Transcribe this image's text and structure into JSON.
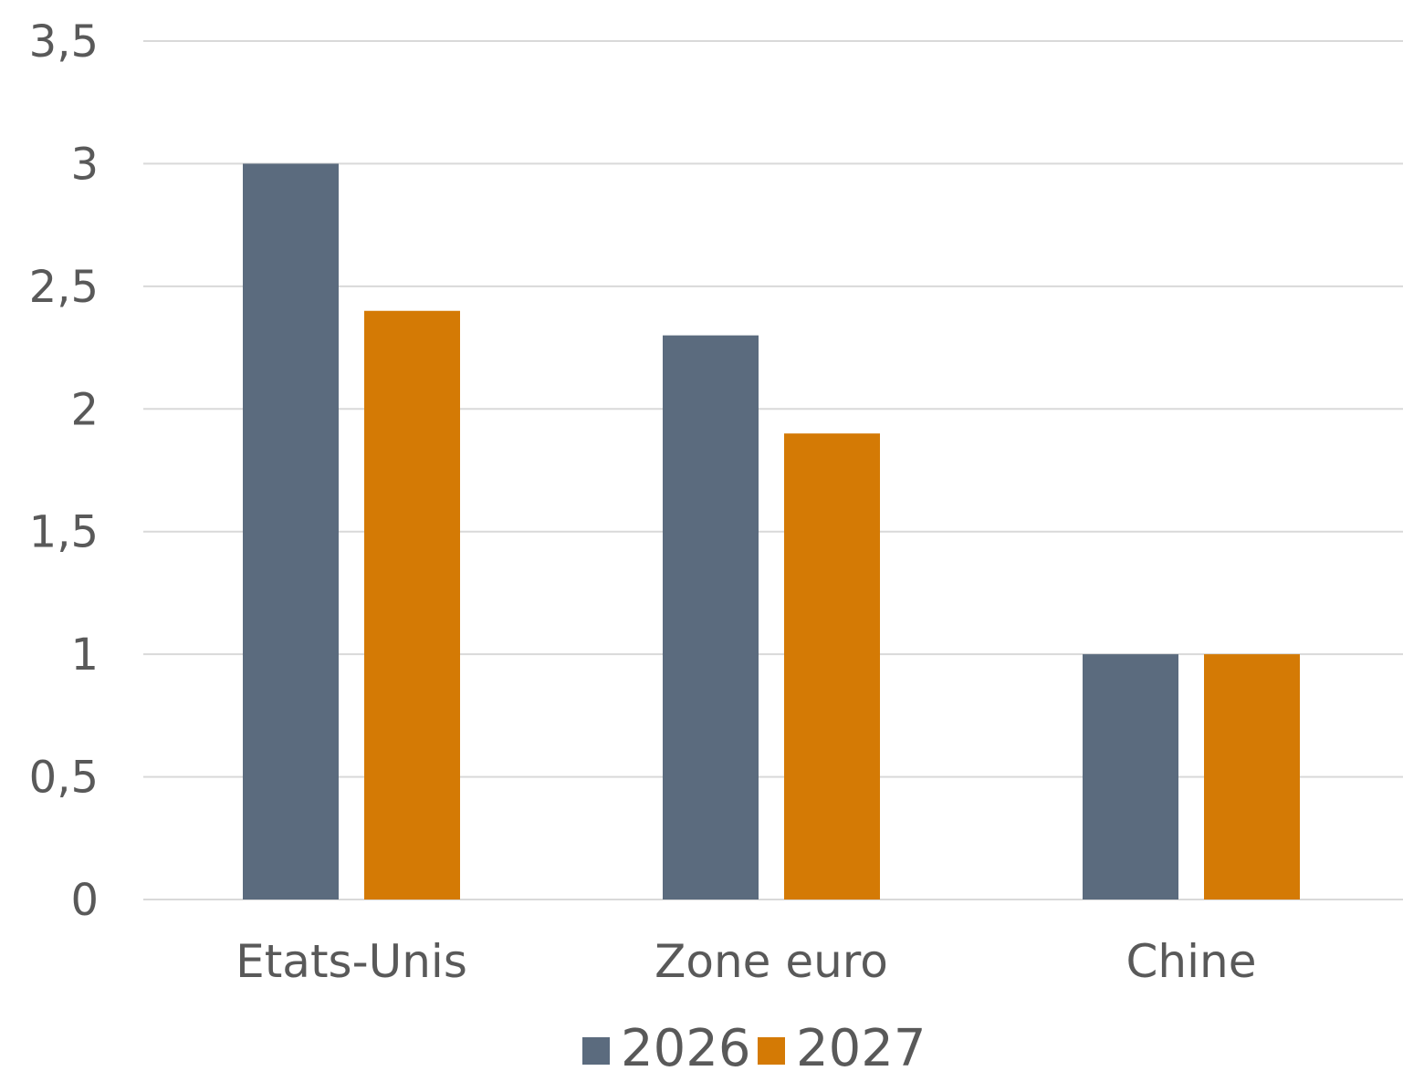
{
  "chart_data": {
    "type": "bar",
    "categories": [
      "Etats-Unis",
      "Zone euro",
      "Chine"
    ],
    "series": [
      {
        "name": "2026",
        "values": [
          3.0,
          2.3,
          1.0
        ],
        "color": "#5b6b7e"
      },
      {
        "name": "2027",
        "values": [
          2.4,
          1.9,
          1.0
        ],
        "color": "#d47a05"
      }
    ],
    "ylim": [
      0,
      3.5
    ],
    "yticks": [
      0,
      0.5,
      1,
      1.5,
      2,
      2.5,
      3,
      3.5
    ],
    "ytick_labels": [
      "0",
      "0,5",
      "1",
      "1,5",
      "2",
      "2,5",
      "3",
      "3,5"
    ],
    "grid": true,
    "legend": "bottom",
    "title": "",
    "xlabel": "",
    "ylabel": ""
  }
}
